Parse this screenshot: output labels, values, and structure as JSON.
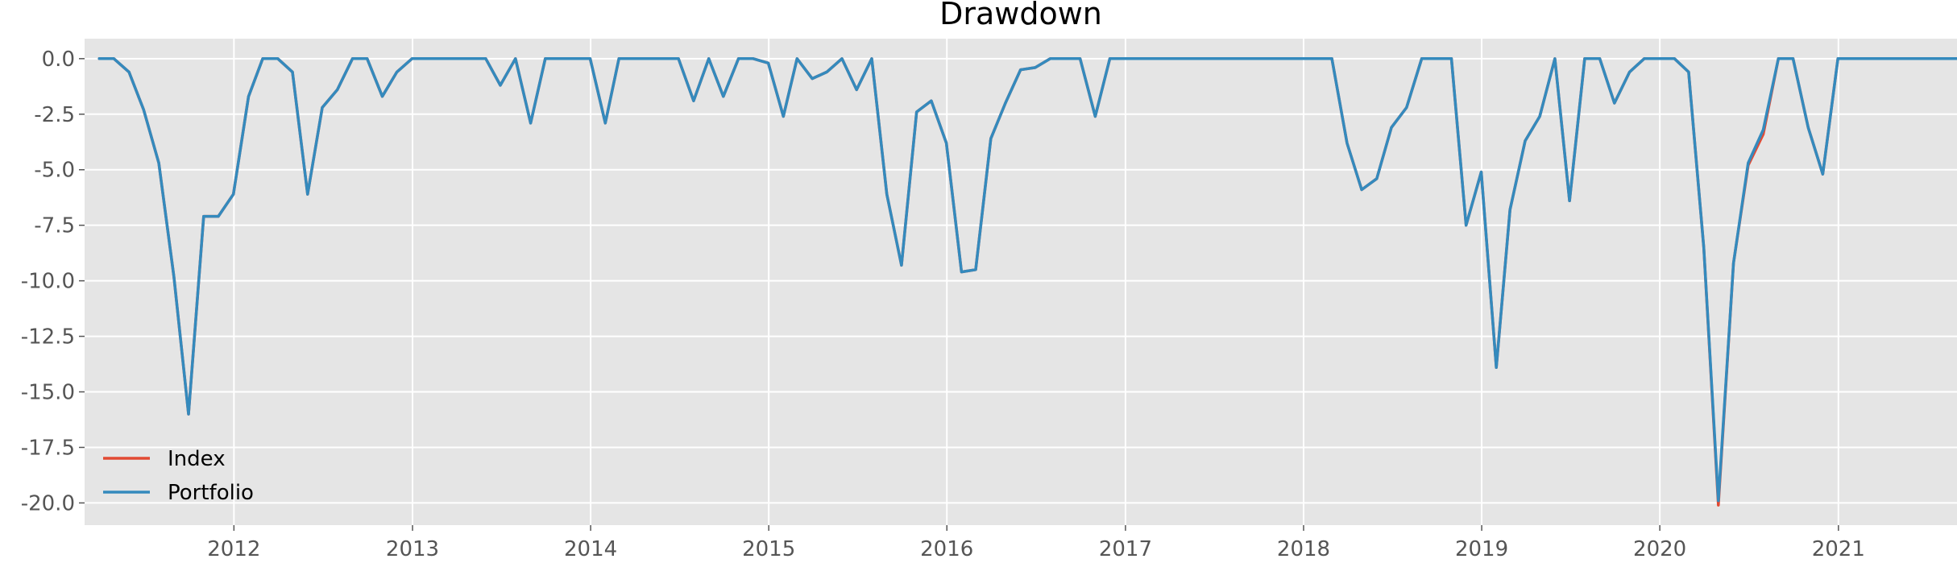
{
  "chart_data": {
    "type": "line",
    "title": "Drawdown",
    "xlabel": "",
    "ylabel": "",
    "x_ticks": [
      "2012",
      "2013",
      "2014",
      "2015",
      "2016",
      "2017",
      "2018",
      "2019",
      "2020",
      "2021"
    ],
    "y_ticks": [
      "0.0",
      "-2.5",
      "-5.0",
      "-7.5",
      "-10.0",
      "-12.5",
      "-15.0",
      "-17.5",
      "-20.0"
    ],
    "xlim": [
      "2011-03-01",
      "2021-09-01"
    ],
    "ylim": [
      -21.0,
      0.9
    ],
    "grid": true,
    "legend_position": "lower-left",
    "background_color": "#e5e5e5",
    "series": [
      {
        "name": "Index",
        "color": "#e24a33",
        "x": [
          "2011-03-31",
          "2011-04-30",
          "2011-05-31",
          "2011-06-30",
          "2011-07-31",
          "2011-08-31",
          "2011-09-30",
          "2011-10-31",
          "2011-11-30",
          "2011-12-31",
          "2012-01-31",
          "2012-02-29",
          "2012-03-31",
          "2012-04-30",
          "2012-05-31",
          "2012-06-30",
          "2012-07-31",
          "2012-08-31",
          "2012-09-30",
          "2012-10-31",
          "2012-11-30",
          "2012-12-31",
          "2013-01-31",
          "2013-02-28",
          "2013-03-31",
          "2013-04-30",
          "2013-05-31",
          "2013-06-30",
          "2013-07-31",
          "2013-08-31",
          "2013-09-30",
          "2013-10-31",
          "2013-11-30",
          "2013-12-31",
          "2014-01-31",
          "2014-02-28",
          "2014-03-31",
          "2014-04-30",
          "2014-05-31",
          "2014-06-30",
          "2014-07-31",
          "2014-08-31",
          "2014-09-30",
          "2014-10-31",
          "2014-11-30",
          "2014-12-31",
          "2015-01-31",
          "2015-02-28",
          "2015-03-31",
          "2015-04-30",
          "2015-05-31",
          "2015-06-30",
          "2015-07-31",
          "2015-08-31",
          "2015-09-30",
          "2015-10-31",
          "2015-11-30",
          "2015-12-31",
          "2016-01-31",
          "2016-02-29",
          "2016-03-31",
          "2016-04-30",
          "2016-05-31",
          "2016-06-30",
          "2016-07-31",
          "2016-08-31",
          "2016-09-30",
          "2016-10-31",
          "2016-11-30",
          "2016-12-31",
          "2017-01-31",
          "2017-02-28",
          "2017-03-31",
          "2017-04-30",
          "2017-05-31",
          "2017-06-30",
          "2017-07-31",
          "2017-08-31",
          "2017-09-30",
          "2017-10-31",
          "2017-11-30",
          "2017-12-31",
          "2018-01-31",
          "2018-02-28",
          "2018-03-31",
          "2018-04-30",
          "2018-05-31",
          "2018-06-30",
          "2018-07-31",
          "2018-08-31",
          "2018-09-30",
          "2018-10-31",
          "2018-11-30",
          "2018-12-31",
          "2019-01-31",
          "2019-02-28",
          "2019-03-31",
          "2019-04-30",
          "2019-05-31",
          "2019-06-30",
          "2019-07-31",
          "2019-08-31",
          "2019-09-30",
          "2019-10-31",
          "2019-11-30",
          "2019-12-31",
          "2020-01-31",
          "2020-02-29",
          "2020-03-31",
          "2020-04-30",
          "2020-05-31",
          "2020-06-30",
          "2020-07-31",
          "2020-08-31",
          "2020-09-30",
          "2020-10-31",
          "2020-11-30",
          "2020-12-31",
          "2021-01-31",
          "2021-02-28",
          "2021-03-31",
          "2021-04-30",
          "2021-05-31",
          "2021-06-30",
          "2021-07-31",
          "2021-08-31"
        ],
        "y": [
          0.0,
          0.0,
          -0.6,
          -2.3,
          -4.7,
          -9.8,
          -16.0,
          -7.1,
          -7.1,
          -6.1,
          -1.7,
          0.0,
          0.0,
          -0.6,
          -6.1,
          -2.2,
          -1.4,
          0.0,
          0.0,
          -1.7,
          -0.6,
          0.0,
          0.0,
          0.0,
          0.0,
          0.0,
          0.0,
          -1.2,
          0.0,
          -2.9,
          0.0,
          0.0,
          0.0,
          0.0,
          -2.9,
          0.0,
          0.0,
          0.0,
          0.0,
          0.0,
          -1.9,
          0.0,
          -1.7,
          0.0,
          0.0,
          -0.2,
          -2.6,
          0.0,
          -0.9,
          -0.6,
          0.0,
          -1.4,
          0.0,
          -6.1,
          -9.3,
          -2.4,
          -1.9,
          -3.8,
          -9.6,
          -9.5,
          -3.6,
          -2.0,
          -0.5,
          -0.4,
          0.0,
          0.0,
          0.0,
          -2.6,
          0.0,
          0.0,
          0.0,
          0.0,
          0.0,
          0.0,
          0.0,
          0.0,
          0.0,
          0.0,
          0.0,
          0.0,
          0.0,
          0.0,
          0.0,
          0.0,
          -3.8,
          -5.9,
          -5.4,
          -3.1,
          -2.2,
          0.0,
          0.0,
          0.0,
          -7.5,
          -5.1,
          -13.9,
          -6.8,
          -3.7,
          -2.6,
          0.0,
          -6.4,
          0.0,
          0.0,
          -2.0,
          -0.6,
          0.0,
          0.0,
          0.0,
          -0.6,
          -8.5,
          -20.1,
          -9.2,
          -4.8,
          -3.4,
          0.0,
          0.0,
          -3.1,
          -5.2,
          0.0,
          0.0,
          0.0,
          0.0,
          0.0,
          0.0,
          0.0,
          0.0,
          0.0
        ]
      },
      {
        "name": "Portfolio",
        "color": "#348abd",
        "x": [
          "2011-03-31",
          "2011-04-30",
          "2011-05-31",
          "2011-06-30",
          "2011-07-31",
          "2011-08-31",
          "2011-09-30",
          "2011-10-31",
          "2011-11-30",
          "2011-12-31",
          "2012-01-31",
          "2012-02-29",
          "2012-03-31",
          "2012-04-30",
          "2012-05-31",
          "2012-06-30",
          "2012-07-31",
          "2012-08-31",
          "2012-09-30",
          "2012-10-31",
          "2012-11-30",
          "2012-12-31",
          "2013-01-31",
          "2013-02-28",
          "2013-03-31",
          "2013-04-30",
          "2013-05-31",
          "2013-06-30",
          "2013-07-31",
          "2013-08-31",
          "2013-09-30",
          "2013-10-31",
          "2013-11-30",
          "2013-12-31",
          "2014-01-31",
          "2014-02-28",
          "2014-03-31",
          "2014-04-30",
          "2014-05-31",
          "2014-06-30",
          "2014-07-31",
          "2014-08-31",
          "2014-09-30",
          "2014-10-31",
          "2014-11-30",
          "2014-12-31",
          "2015-01-31",
          "2015-02-28",
          "2015-03-31",
          "2015-04-30",
          "2015-05-31",
          "2015-06-30",
          "2015-07-31",
          "2015-08-31",
          "2015-09-30",
          "2015-10-31",
          "2015-11-30",
          "2015-12-31",
          "2016-01-31",
          "2016-02-29",
          "2016-03-31",
          "2016-04-30",
          "2016-05-31",
          "2016-06-30",
          "2016-07-31",
          "2016-08-31",
          "2016-09-30",
          "2016-10-31",
          "2016-11-30",
          "2016-12-31",
          "2017-01-31",
          "2017-02-28",
          "2017-03-31",
          "2017-04-30",
          "2017-05-31",
          "2017-06-30",
          "2017-07-31",
          "2017-08-31",
          "2017-09-30",
          "2017-10-31",
          "2017-11-30",
          "2017-12-31",
          "2018-01-31",
          "2018-02-28",
          "2018-03-31",
          "2018-04-30",
          "2018-05-31",
          "2018-06-30",
          "2018-07-31",
          "2018-08-31",
          "2018-09-30",
          "2018-10-31",
          "2018-11-30",
          "2018-12-31",
          "2019-01-31",
          "2019-02-28",
          "2019-03-31",
          "2019-04-30",
          "2019-05-31",
          "2019-06-30",
          "2019-07-31",
          "2019-08-31",
          "2019-09-30",
          "2019-10-31",
          "2019-11-30",
          "2019-12-31",
          "2020-01-31",
          "2020-02-29",
          "2020-03-31",
          "2020-04-30",
          "2020-05-31",
          "2020-06-30",
          "2020-07-31",
          "2020-08-31",
          "2020-09-30",
          "2020-10-31",
          "2020-11-30",
          "2020-12-31",
          "2021-01-31",
          "2021-02-28",
          "2021-03-31",
          "2021-04-30",
          "2021-05-31",
          "2021-06-30",
          "2021-07-31",
          "2021-08-31"
        ],
        "y": [
          0.0,
          0.0,
          -0.6,
          -2.3,
          -4.7,
          -9.8,
          -16.0,
          -7.1,
          -7.1,
          -6.1,
          -1.7,
          0.0,
          0.0,
          -0.6,
          -6.1,
          -2.2,
          -1.4,
          0.0,
          0.0,
          -1.7,
          -0.6,
          0.0,
          0.0,
          0.0,
          0.0,
          0.0,
          0.0,
          -1.2,
          0.0,
          -2.9,
          0.0,
          0.0,
          0.0,
          0.0,
          -2.9,
          0.0,
          0.0,
          0.0,
          0.0,
          0.0,
          -1.9,
          0.0,
          -1.7,
          0.0,
          0.0,
          -0.2,
          -2.6,
          0.0,
          -0.9,
          -0.6,
          0.0,
          -1.4,
          0.0,
          -6.1,
          -9.3,
          -2.4,
          -1.9,
          -3.8,
          -9.6,
          -9.5,
          -3.6,
          -2.0,
          -0.5,
          -0.4,
          0.0,
          0.0,
          0.0,
          -2.6,
          0.0,
          0.0,
          0.0,
          0.0,
          0.0,
          0.0,
          0.0,
          0.0,
          0.0,
          0.0,
          0.0,
          0.0,
          0.0,
          0.0,
          0.0,
          0.0,
          -3.8,
          -5.9,
          -5.4,
          -3.1,
          -2.2,
          0.0,
          0.0,
          0.0,
          -7.5,
          -5.1,
          -13.9,
          -6.8,
          -3.7,
          -2.6,
          0.0,
          -6.4,
          0.0,
          0.0,
          -2.0,
          -0.6,
          0.0,
          0.0,
          0.0,
          -0.6,
          -8.5,
          -19.9,
          -9.2,
          -4.7,
          -3.2,
          0.0,
          0.0,
          -3.1,
          -5.2,
          0.0,
          0.0,
          0.0,
          0.0,
          0.0,
          0.0,
          0.0,
          0.0,
          0.0
        ]
      }
    ]
  }
}
